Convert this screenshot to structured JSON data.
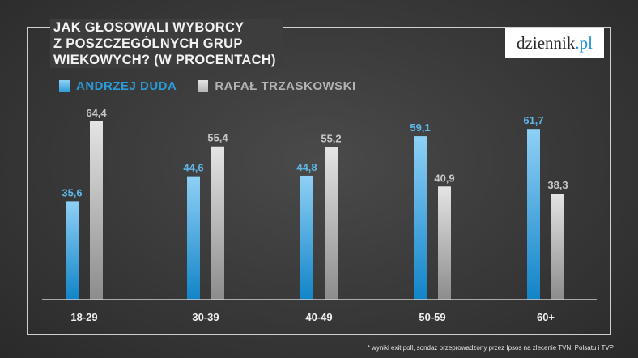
{
  "title_lines": [
    "JAK GŁOSOWALI WYBORCY",
    "Z POSZCZEGÓLNYCH GRUP",
    "WIEKOWYCH? (W PROCENTACH)"
  ],
  "brand": {
    "name": "dziennik",
    "suffix": ".pl"
  },
  "footnote": "* wyniki exit poll, sondaż przeprowadzony przez Ipsos na zlecenie TVN, Polsatu i TVP",
  "colors": {
    "duda": "#2b9ad8",
    "trzaskowski": "#b3b3b3",
    "duda_label": "#5fb6e6",
    "trzaskowski_label": "#c8c8c8"
  },
  "chart_data": {
    "type": "bar",
    "title": "JAK GŁOSOWALI WYBORCY Z POSZCZEGÓLNYCH GRUP WIEKOWYCH? (W PROCENTACH)",
    "categories": [
      "18-29",
      "30-39",
      "40-49",
      "50-59",
      "60+"
    ],
    "series": [
      {
        "name": "ANDRZEJ DUDA",
        "values": [
          35.6,
          44.6,
          44.8,
          59.1,
          61.7
        ],
        "labels": [
          "35,6",
          "44,6",
          "44,8",
          "59,1",
          "61,7"
        ]
      },
      {
        "name": "RAFAŁ TRZASKOWSKI",
        "values": [
          64.4,
          55.4,
          55.2,
          40.9,
          38.3
        ],
        "labels": [
          "64,4",
          "55,4",
          "55,2",
          "40,9",
          "38,3"
        ]
      }
    ],
    "ylim": [
      0,
      100
    ],
    "grid": false,
    "legend": "top-left"
  }
}
